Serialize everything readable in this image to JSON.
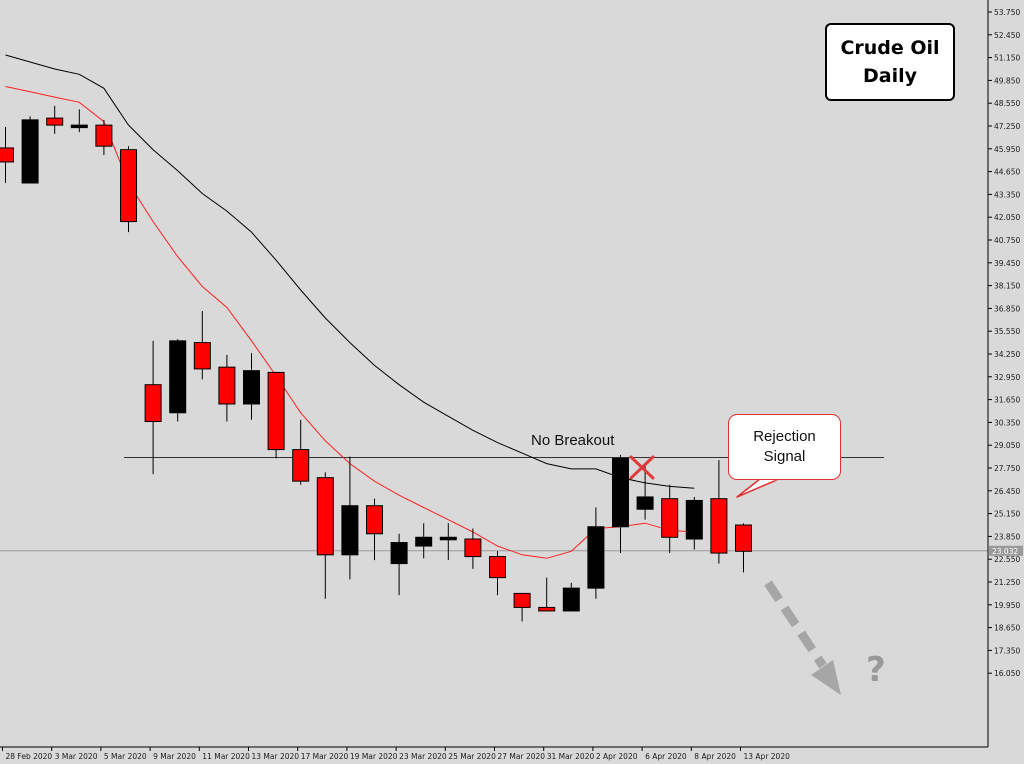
{
  "chart_data": {
    "type": "candlestick",
    "title_lines": [
      "Crude Oil",
      "Daily"
    ],
    "ylim": [
      14.75,
      54.5
    ],
    "y_ticks": [
      "53.750",
      "52.450",
      "51.150",
      "49.850",
      "48.550",
      "47.250",
      "45.950",
      "44.650",
      "43.350",
      "42.050",
      "40.750",
      "39.450",
      "38.150",
      "36.850",
      "35.550",
      "34.250",
      "32.950",
      "31.650",
      "30.350",
      "29.050",
      "27.750",
      "26.450",
      "25.150",
      "23.850",
      "22.550",
      "21.250",
      "19.950",
      "18.650",
      "17.350",
      "16.050"
    ],
    "current_price_label": "23.032",
    "current_price": 23.03,
    "resistance_level": 28.35,
    "x_tick_labels": [
      {
        "label": "28 Feb 2020",
        "bar": 0
      },
      {
        "label": "3 Mar 2020",
        "bar": 2
      },
      {
        "label": "5 Mar 2020",
        "bar": 4
      },
      {
        "label": "9 Mar 2020",
        "bar": 6
      },
      {
        "label": "11 Mar 2020",
        "bar": 8
      },
      {
        "label": "13 Mar 2020",
        "bar": 10
      },
      {
        "label": "17 Mar 2020",
        "bar": 12
      },
      {
        "label": "19 Mar 2020",
        "bar": 14
      },
      {
        "label": "23 Mar 2020",
        "bar": 16
      },
      {
        "label": "25 Mar 2020",
        "bar": 18
      },
      {
        "label": "27 Mar 2020",
        "bar": 20
      },
      {
        "label": "31 Mar 2020",
        "bar": 22
      },
      {
        "label": "2 Apr 2020",
        "bar": 24
      },
      {
        "label": "6 Apr 2020",
        "bar": 26
      },
      {
        "label": "8 Apr 2020",
        "bar": 28
      },
      {
        "label": "13 Apr 2020",
        "bar": 30
      }
    ],
    "candles": [
      {
        "o": 45.2,
        "h": 47.2,
        "l": 44.0,
        "c": 46.0,
        "color": "red"
      },
      {
        "o": 44.0,
        "h": 47.8,
        "l": 44.0,
        "c": 47.6,
        "color": "black"
      },
      {
        "o": 47.3,
        "h": 48.4,
        "l": 46.8,
        "c": 47.7,
        "color": "red"
      },
      {
        "o": 47.3,
        "h": 48.2,
        "l": 46.9,
        "c": 47.3,
        "color": "black"
      },
      {
        "o": 47.3,
        "h": 47.6,
        "l": 45.6,
        "c": 46.1,
        "color": "red"
      },
      {
        "o": 45.9,
        "h": 46.1,
        "l": 41.2,
        "c": 41.8,
        "color": "red"
      },
      {
        "o": 32.5,
        "h": 35.0,
        "l": 27.4,
        "c": 30.4,
        "color": "red"
      },
      {
        "o": 30.9,
        "h": 35.1,
        "l": 30.4,
        "c": 35.0,
        "color": "black"
      },
      {
        "o": 34.9,
        "h": 36.7,
        "l": 32.8,
        "c": 33.4,
        "color": "red"
      },
      {
        "o": 33.5,
        "h": 34.2,
        "l": 30.4,
        "c": 31.4,
        "color": "red"
      },
      {
        "o": 31.4,
        "h": 34.3,
        "l": 30.5,
        "c": 33.3,
        "color": "black"
      },
      {
        "o": 33.2,
        "h": 33.2,
        "l": 28.3,
        "c": 28.8,
        "color": "red"
      },
      {
        "o": 28.8,
        "h": 30.5,
        "l": 26.8,
        "c": 27.0,
        "color": "red"
      },
      {
        "o": 27.2,
        "h": 27.5,
        "l": 20.3,
        "c": 22.8,
        "color": "red"
      },
      {
        "o": 22.8,
        "h": 28.4,
        "l": 21.4,
        "c": 25.6,
        "color": "black"
      },
      {
        "o": 25.6,
        "h": 26.0,
        "l": 22.5,
        "c": 24.0,
        "color": "red"
      },
      {
        "o": 23.5,
        "h": 24.0,
        "l": 20.5,
        "c": 22.3,
        "color": "black"
      },
      {
        "o": 23.3,
        "h": 24.6,
        "l": 22.6,
        "c": 23.8,
        "color": "black"
      },
      {
        "o": 23.8,
        "h": 24.6,
        "l": 22.5,
        "c": 23.8,
        "color": "black"
      },
      {
        "o": 23.7,
        "h": 24.3,
        "l": 22.0,
        "c": 22.7,
        "color": "red"
      },
      {
        "o": 22.7,
        "h": 23.0,
        "l": 20.5,
        "c": 21.5,
        "color": "red"
      },
      {
        "o": 20.6,
        "h": 20.6,
        "l": 19.0,
        "c": 19.8,
        "color": "red"
      },
      {
        "o": 19.8,
        "h": 21.5,
        "l": 19.6,
        "c": 19.6,
        "color": "red"
      },
      {
        "o": 19.6,
        "h": 21.2,
        "l": 19.6,
        "c": 20.9,
        "color": "black"
      },
      {
        "o": 20.9,
        "h": 25.5,
        "l": 20.3,
        "c": 24.4,
        "color": "black"
      },
      {
        "o": 24.4,
        "h": 28.5,
        "l": 22.9,
        "c": 28.3,
        "color": "black"
      },
      {
        "o": 25.4,
        "h": 27.9,
        "l": 24.8,
        "c": 26.1,
        "color": "black"
      },
      {
        "o": 26.0,
        "h": 26.8,
        "l": 22.9,
        "c": 23.8,
        "color": "red"
      },
      {
        "o": 23.7,
        "h": 26.1,
        "l": 23.1,
        "c": 25.9,
        "color": "black"
      },
      {
        "o": 26.0,
        "h": 28.2,
        "l": 22.3,
        "c": 22.9,
        "color": "red"
      },
      {
        "o": 24.5,
        "h": 24.6,
        "l": 21.8,
        "c": 23.0,
        "color": "red"
      }
    ],
    "ma_slow": [
      51.3,
      50.9,
      50.5,
      50.2,
      49.4,
      47.3,
      45.9,
      44.7,
      43.4,
      42.4,
      41.2,
      39.6,
      37.9,
      36.3,
      34.9,
      33.6,
      32.5,
      31.5,
      30.7,
      29.9,
      29.2,
      28.6,
      28.0,
      27.7,
      27.7,
      27.2,
      26.9,
      26.7,
      26.6
    ],
    "ma_fast": [
      49.5,
      49.2,
      48.9,
      48.6,
      47.5,
      44.0,
      41.8,
      39.8,
      38.1,
      36.9,
      35.0,
      33.0,
      30.9,
      29.3,
      28.0,
      27.0,
      26.2,
      25.5,
      24.8,
      24.1,
      23.3,
      22.8,
      22.6,
      23.0,
      24.3,
      24.4,
      24.6,
      24.2,
      24.1
    ],
    "annotations": {
      "no_breakout": "No Breakout",
      "rejection_lines": [
        "Rejection",
        "Signal"
      ],
      "question": "?"
    }
  },
  "colors": {
    "background": "#d9d9d9",
    "bull": "#000000",
    "bear": "#ff0000",
    "ma_slow": "#000000",
    "ma_fast": "#ff2020",
    "arrow": "#a6a6a6",
    "cross": "#e03a3a"
  }
}
